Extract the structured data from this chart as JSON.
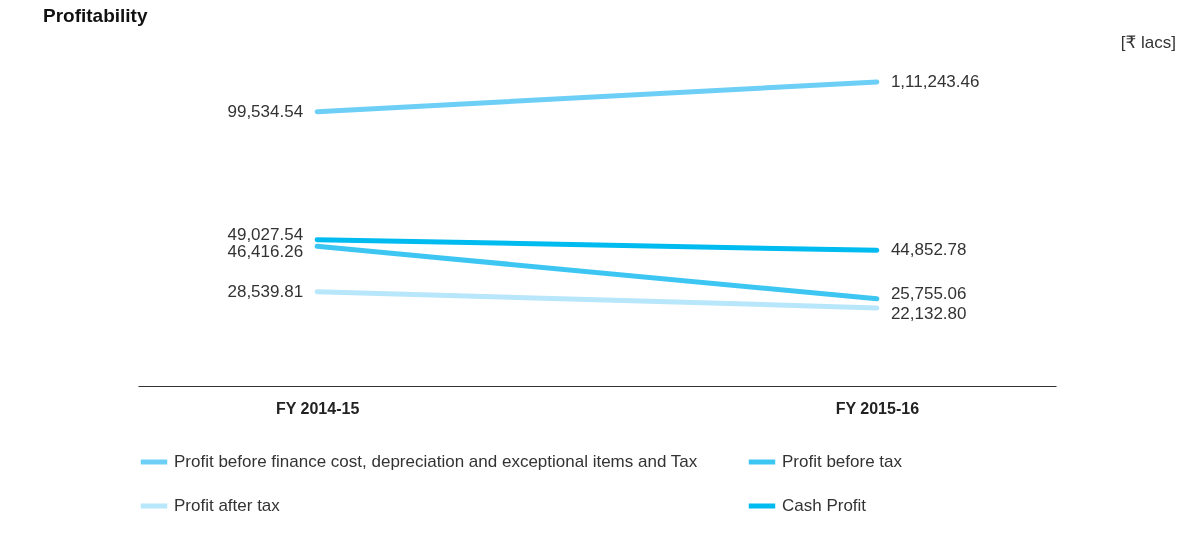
{
  "chart_data": {
    "type": "line",
    "title": "Profitability",
    "annotations": [
      "[₹ lacs]"
    ],
    "categories": [
      "FY 2014-15",
      "FY 2015-16"
    ],
    "legend": "bottom",
    "series": [
      {
        "name": "Profit before finance cost, depreciation and exceptional items and Tax",
        "color": "#6dcff6",
        "values": [
          99534.54,
          111243.46
        ],
        "value_labels": [
          "99,534.54",
          "1,11,243.46"
        ]
      },
      {
        "name": "Profit before tax",
        "color": "#3ec6f3",
        "values": [
          46416.26,
          25755.06
        ],
        "value_labels": [
          "46,416.26",
          "25,755.06"
        ]
      },
      {
        "name": "Profit after tax",
        "color": "#b8e6fa",
        "values": [
          28539.81,
          22132.8
        ],
        "value_labels": [
          "28,539.81",
          "22,132.80"
        ]
      },
      {
        "name": "Cash Profit",
        "color": "#00bbef",
        "values": [
          49027.54,
          44852.78
        ],
        "value_labels": [
          "49,027.54",
          "44,852.78"
        ]
      }
    ]
  }
}
